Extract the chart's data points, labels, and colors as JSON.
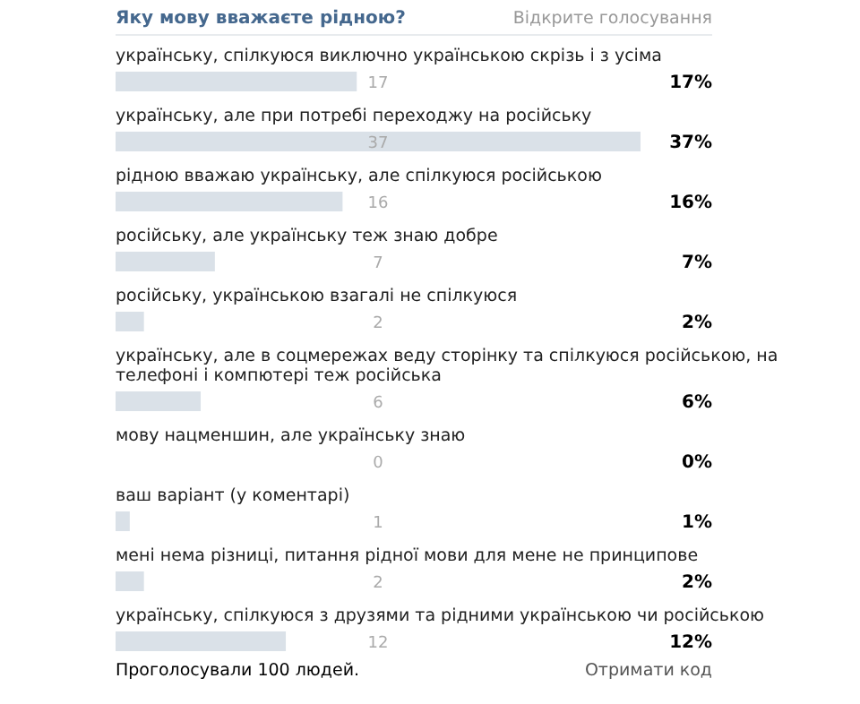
{
  "chart_data": {
    "type": "bar",
    "orientation": "horizontal",
    "title": "Яку мову вважаєте рідною?",
    "subtitle": "Відкрите голосування",
    "categories": [
      "українську, спілкуюся виключно українською скрізь і з усіма",
      "українську, але при потребі переходжу на російську",
      "рідною вважаю українську, але спілкуюся російською",
      "російську, але українську теж знаю добре",
      "російську, українською взагалі не спілкуюся",
      "українську, але в соцмережах веду сторінку та спілкуюся російською, на телефоні і компютері теж російська",
      "мову нацменшин, але українську знаю",
      "ваш варіант (у коментарі)",
      "мені нема різниці, питання рідної мови для мене не принципове",
      "українську, спілкуюся з друзями та рідними українською чи російською"
    ],
    "values": [
      17,
      37,
      16,
      7,
      2,
      6,
      0,
      1,
      2,
      12
    ],
    "value_labels": [
      "17",
      "37",
      "16",
      "7",
      "2",
      "6",
      "0",
      "1",
      "2",
      "12"
    ],
    "color": "#dae1e8",
    "xlim": [
      0,
      37
    ],
    "tick_labels": false,
    "annotations": [
      "17%",
      "37%",
      "16%",
      "7%",
      "2%",
      "6%",
      "0%",
      "1%",
      "2%",
      "12%",
      "Проголосували 100 людей.",
      "Отримати код"
    ]
  }
}
